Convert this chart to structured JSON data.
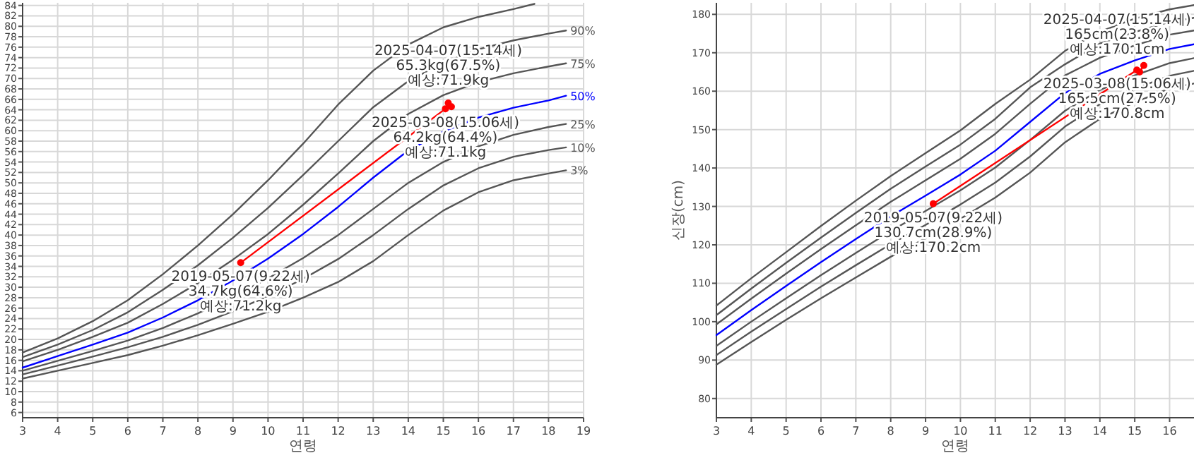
{
  "chart_data": [
    {
      "type": "line",
      "xlabel": "연령",
      "xlim": [
        3,
        19
      ],
      "xticks": [
        3,
        4,
        5,
        6,
        7,
        8,
        9,
        10,
        11,
        12,
        13,
        14,
        15,
        16,
        17,
        18,
        19
      ],
      "ylim": [
        5,
        84.5
      ],
      "yticks": [
        6,
        8,
        10,
        12,
        14,
        16,
        18,
        20,
        22,
        24,
        26,
        28,
        30,
        32,
        34,
        36,
        38,
        40,
        42,
        44,
        46,
        48,
        50,
        52,
        54,
        56,
        58,
        60,
        62,
        64,
        66,
        68,
        70,
        72,
        74,
        76,
        78,
        80,
        82,
        84
      ],
      "grid": true,
      "series": [
        {
          "color": "#555555",
          "x": [
            3,
            4,
            5,
            6,
            7,
            8,
            9,
            10,
            11,
            12,
            13,
            14,
            15,
            16,
            17,
            17.6
          ],
          "values": [
            17.5,
            20.2,
            23.5,
            27.5,
            32.5,
            38,
            44,
            50.5,
            57.5,
            65,
            71.5,
            76.5,
            79.8,
            81.8,
            83.3,
            84.3
          ]
        },
        {
          "name": "90%",
          "color": "#555555",
          "x": [
            3,
            4,
            5,
            6,
            7,
            8,
            9,
            10,
            11,
            12,
            13,
            14,
            15,
            16,
            17,
            18,
            18.5
          ],
          "values": [
            16.6,
            19,
            21.8,
            25.2,
            29.5,
            34.2,
            39.5,
            45.2,
            51.5,
            58,
            64.5,
            69.5,
            73,
            75.6,
            77.3,
            78.6,
            79.2
          ]
        },
        {
          "name": "75%",
          "color": "#555555",
          "x": [
            3,
            4,
            5,
            6,
            7,
            8,
            9,
            10,
            11,
            12,
            13,
            14,
            15,
            16,
            17,
            18,
            18.5
          ],
          "values": [
            15.8,
            18,
            20.5,
            23.2,
            26.8,
            30.8,
            35.3,
            40.2,
            45.8,
            51.8,
            58,
            63.2,
            66.8,
            69.3,
            71,
            72.3,
            72.9
          ]
        },
        {
          "name": "50%",
          "color": "#0000ff",
          "x": [
            3,
            4,
            5,
            6,
            7,
            8,
            9,
            10,
            11,
            12,
            13,
            14,
            15,
            16,
            17,
            18,
            18.5
          ],
          "values": [
            14.6,
            16.8,
            19,
            21.3,
            24.2,
            27.5,
            31.3,
            35.5,
            40.2,
            45.4,
            51,
            56.2,
            59.8,
            62.5,
            64.4,
            65.8,
            66.7
          ]
        },
        {
          "name": "25%",
          "color": "#555555",
          "x": [
            3,
            4,
            5,
            6,
            7,
            8,
            9,
            10,
            11,
            12,
            13,
            14,
            15,
            16,
            17,
            18,
            18.5
          ],
          "values": [
            14,
            15.9,
            17.8,
            19.8,
            22.2,
            25,
            28.2,
            31.7,
            35.6,
            40,
            45,
            50,
            54,
            57,
            59.2,
            60.7,
            61.3
          ]
        },
        {
          "name": "10%",
          "color": "#555555",
          "x": [
            3,
            4,
            5,
            6,
            7,
            8,
            9,
            10,
            11,
            12,
            13,
            14,
            15,
            16,
            17,
            18,
            18.5
          ],
          "values": [
            13.3,
            15,
            16.7,
            18.5,
            20.5,
            22.8,
            25.4,
            28.3,
            31.6,
            35.4,
            40,
            45,
            49.5,
            52.8,
            55,
            56.3,
            56.8
          ]
        },
        {
          "name": "3%",
          "color": "#555555",
          "x": [
            3,
            4,
            5,
            6,
            7,
            8,
            9,
            10,
            11,
            12,
            13,
            14,
            15,
            16,
            17,
            18,
            18.5
          ],
          "values": [
            12.5,
            14,
            15.5,
            17,
            18.8,
            20.8,
            23,
            25.3,
            28,
            31,
            35,
            40,
            44.7,
            48.2,
            50.5,
            51.8,
            52.4
          ]
        },
        {
          "color": "#ff0000",
          "marker": "circle",
          "x": [
            9.22,
            15.06,
            15.14,
            15.23
          ],
          "values": [
            34.7,
            64.2,
            65.3,
            64.6
          ]
        }
      ],
      "annotations": [
        {
          "text": "2019-05-07(9.22세)\n34.7kg(64.6%)\n예상:71.2kg",
          "x": 9.22,
          "y": 34.7
        },
        {
          "text": "2025-03-08(15.06세)\n64.2kg(64.4%)\n예상:71.1kg",
          "x": 15.06,
          "y": 64.2
        },
        {
          "text": "2025-04-07(15.14세)\n65.3kg(67.5%)\n예상:71.9kg",
          "x": 15.14,
          "y": 65.3
        }
      ]
    },
    {
      "type": "line",
      "xlabel": "연령",
      "ylabel": "신장(cm)",
      "xlim": [
        3,
        16.7
      ],
      "xticks": [
        3,
        4,
        5,
        6,
        7,
        8,
        9,
        10,
        11,
        12,
        13,
        14,
        15,
        16
      ],
      "ylim": [
        75,
        183
      ],
      "yticks": [
        80,
        90,
        100,
        110,
        120,
        130,
        140,
        150,
        160,
        170,
        180
      ],
      "grid": true,
      "series": [
        {
          "color": "#555555",
          "x": [
            3,
            4,
            5,
            6,
            7,
            8,
            9,
            10,
            11,
            12,
            13,
            14,
            15,
            16,
            16.7
          ],
          "values": [
            104.2,
            111.3,
            118.1,
            124.9,
            131.5,
            137.9,
            143.9,
            149.8,
            156.7,
            163,
            170.5,
            175.5,
            178.9,
            181.3,
            182.4
          ]
        },
        {
          "color": "#555555",
          "x": [
            3,
            4,
            5,
            6,
            7,
            8,
            9,
            10,
            11,
            12,
            13,
            14,
            15,
            16,
            16.7
          ],
          "values": [
            101.7,
            108.6,
            115.3,
            121.9,
            128.3,
            134.6,
            140.4,
            146.1,
            152.8,
            161,
            167,
            172.4,
            175.4,
            178,
            179.1
          ]
        },
        {
          "color": "#555555",
          "x": [
            3,
            4,
            5,
            6,
            7,
            8,
            9,
            10,
            11,
            12,
            13,
            14,
            15,
            16,
            16.7
          ],
          "values": [
            99.3,
            106,
            112.5,
            118.9,
            125.1,
            131.2,
            136.8,
            142.4,
            148.9,
            156.7,
            164.1,
            168.7,
            171.9,
            174.7,
            175.8
          ]
        },
        {
          "color": "#0000ff",
          "x": [
            3,
            4,
            5,
            6,
            7,
            8,
            9,
            10,
            11,
            12,
            13,
            14,
            15,
            16,
            16.7
          ],
          "values": [
            96.5,
            103,
            109.3,
            115.5,
            121.5,
            127.4,
            132.8,
            138.3,
            144.5,
            152,
            159.5,
            164.5,
            168,
            171,
            172.2
          ]
        },
        {
          "color": "#555555",
          "x": [
            3,
            4,
            5,
            6,
            7,
            8,
            9,
            10,
            11,
            12,
            13,
            14,
            15,
            16,
            16.7
          ],
          "values": [
            93.7,
            100,
            106.1,
            112.1,
            117.9,
            123.6,
            128.8,
            134.2,
            140.1,
            147.3,
            154.9,
            160.3,
            164.1,
            167.3,
            168.6
          ]
        },
        {
          "color": "#555555",
          "x": [
            3,
            4,
            5,
            6,
            7,
            8,
            9,
            10,
            11,
            12,
            13,
            14,
            15,
            16,
            16.7
          ],
          "values": [
            91.3,
            97.4,
            103.3,
            109.1,
            114.7,
            120.2,
            125.2,
            130.5,
            136.2,
            143,
            150.8,
            156.6,
            160.6,
            164,
            165.3
          ]
        },
        {
          "color": "#555555",
          "x": [
            3,
            4,
            5,
            6,
            7,
            8,
            9,
            10,
            11,
            12,
            13,
            14,
            15,
            16,
            16.7
          ],
          "values": [
            88.8,
            94.7,
            100.5,
            106.1,
            111.5,
            116.9,
            121.7,
            126.8,
            132.3,
            138.8,
            146.7,
            152.8,
            157.1,
            160.7,
            162
          ]
        },
        {
          "color": "#ff0000",
          "marker": "circle",
          "x": [
            9.22,
            15.06,
            15.14,
            15.26
          ],
          "values": [
            130.7,
            165.5,
            165,
            166.7
          ]
        }
      ],
      "annotations": [
        {
          "text": "2019-05-07(9.22세)\n130.7cm(28.9%)\n예상:170.2cm",
          "x": 9.22,
          "y": 130.7
        },
        {
          "text": "2025-03-08(15.06세)\n165.5cm(27.5%)\n예상:170.8cm",
          "x": 15.06,
          "y": 165.5
        },
        {
          "text": "2025-04-07(15.14세)\n165cm(23.8%)\n예상:170.1cm",
          "x": 15.14,
          "y": 165
        }
      ]
    }
  ]
}
